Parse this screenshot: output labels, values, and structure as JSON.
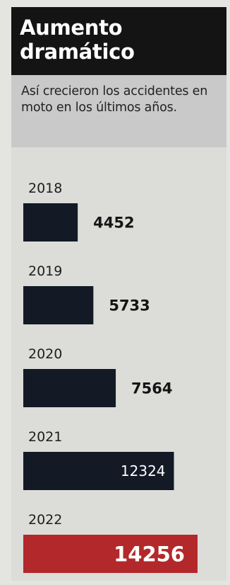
{
  "header": {
    "title": "Aumento dramático",
    "subtitle": "Así crecieron los accidentes en moto en los últimos años."
  },
  "colors": {
    "title_bg": "#141414",
    "subtitle_bg": "#c9c9c9",
    "panel_bg": "#dcdcd9",
    "bar_dark": "#131a26",
    "bar_highlight": "#b3282a"
  },
  "chart_data": {
    "type": "bar",
    "orientation": "horizontal",
    "title": "Aumento dramático",
    "subtitle": "Así crecieron los accidentes en moto en los últimos años.",
    "categories": [
      "2018",
      "2019",
      "2020",
      "2021",
      "2022"
    ],
    "values": [
      4452,
      5733,
      7564,
      12324,
      14256
    ],
    "value_labels": [
      "4452",
      "5733",
      "7564",
      "12324",
      "14256"
    ],
    "highlight": "2022",
    "xlim": [
      0,
      14256
    ],
    "grid": false,
    "legend": "none"
  }
}
